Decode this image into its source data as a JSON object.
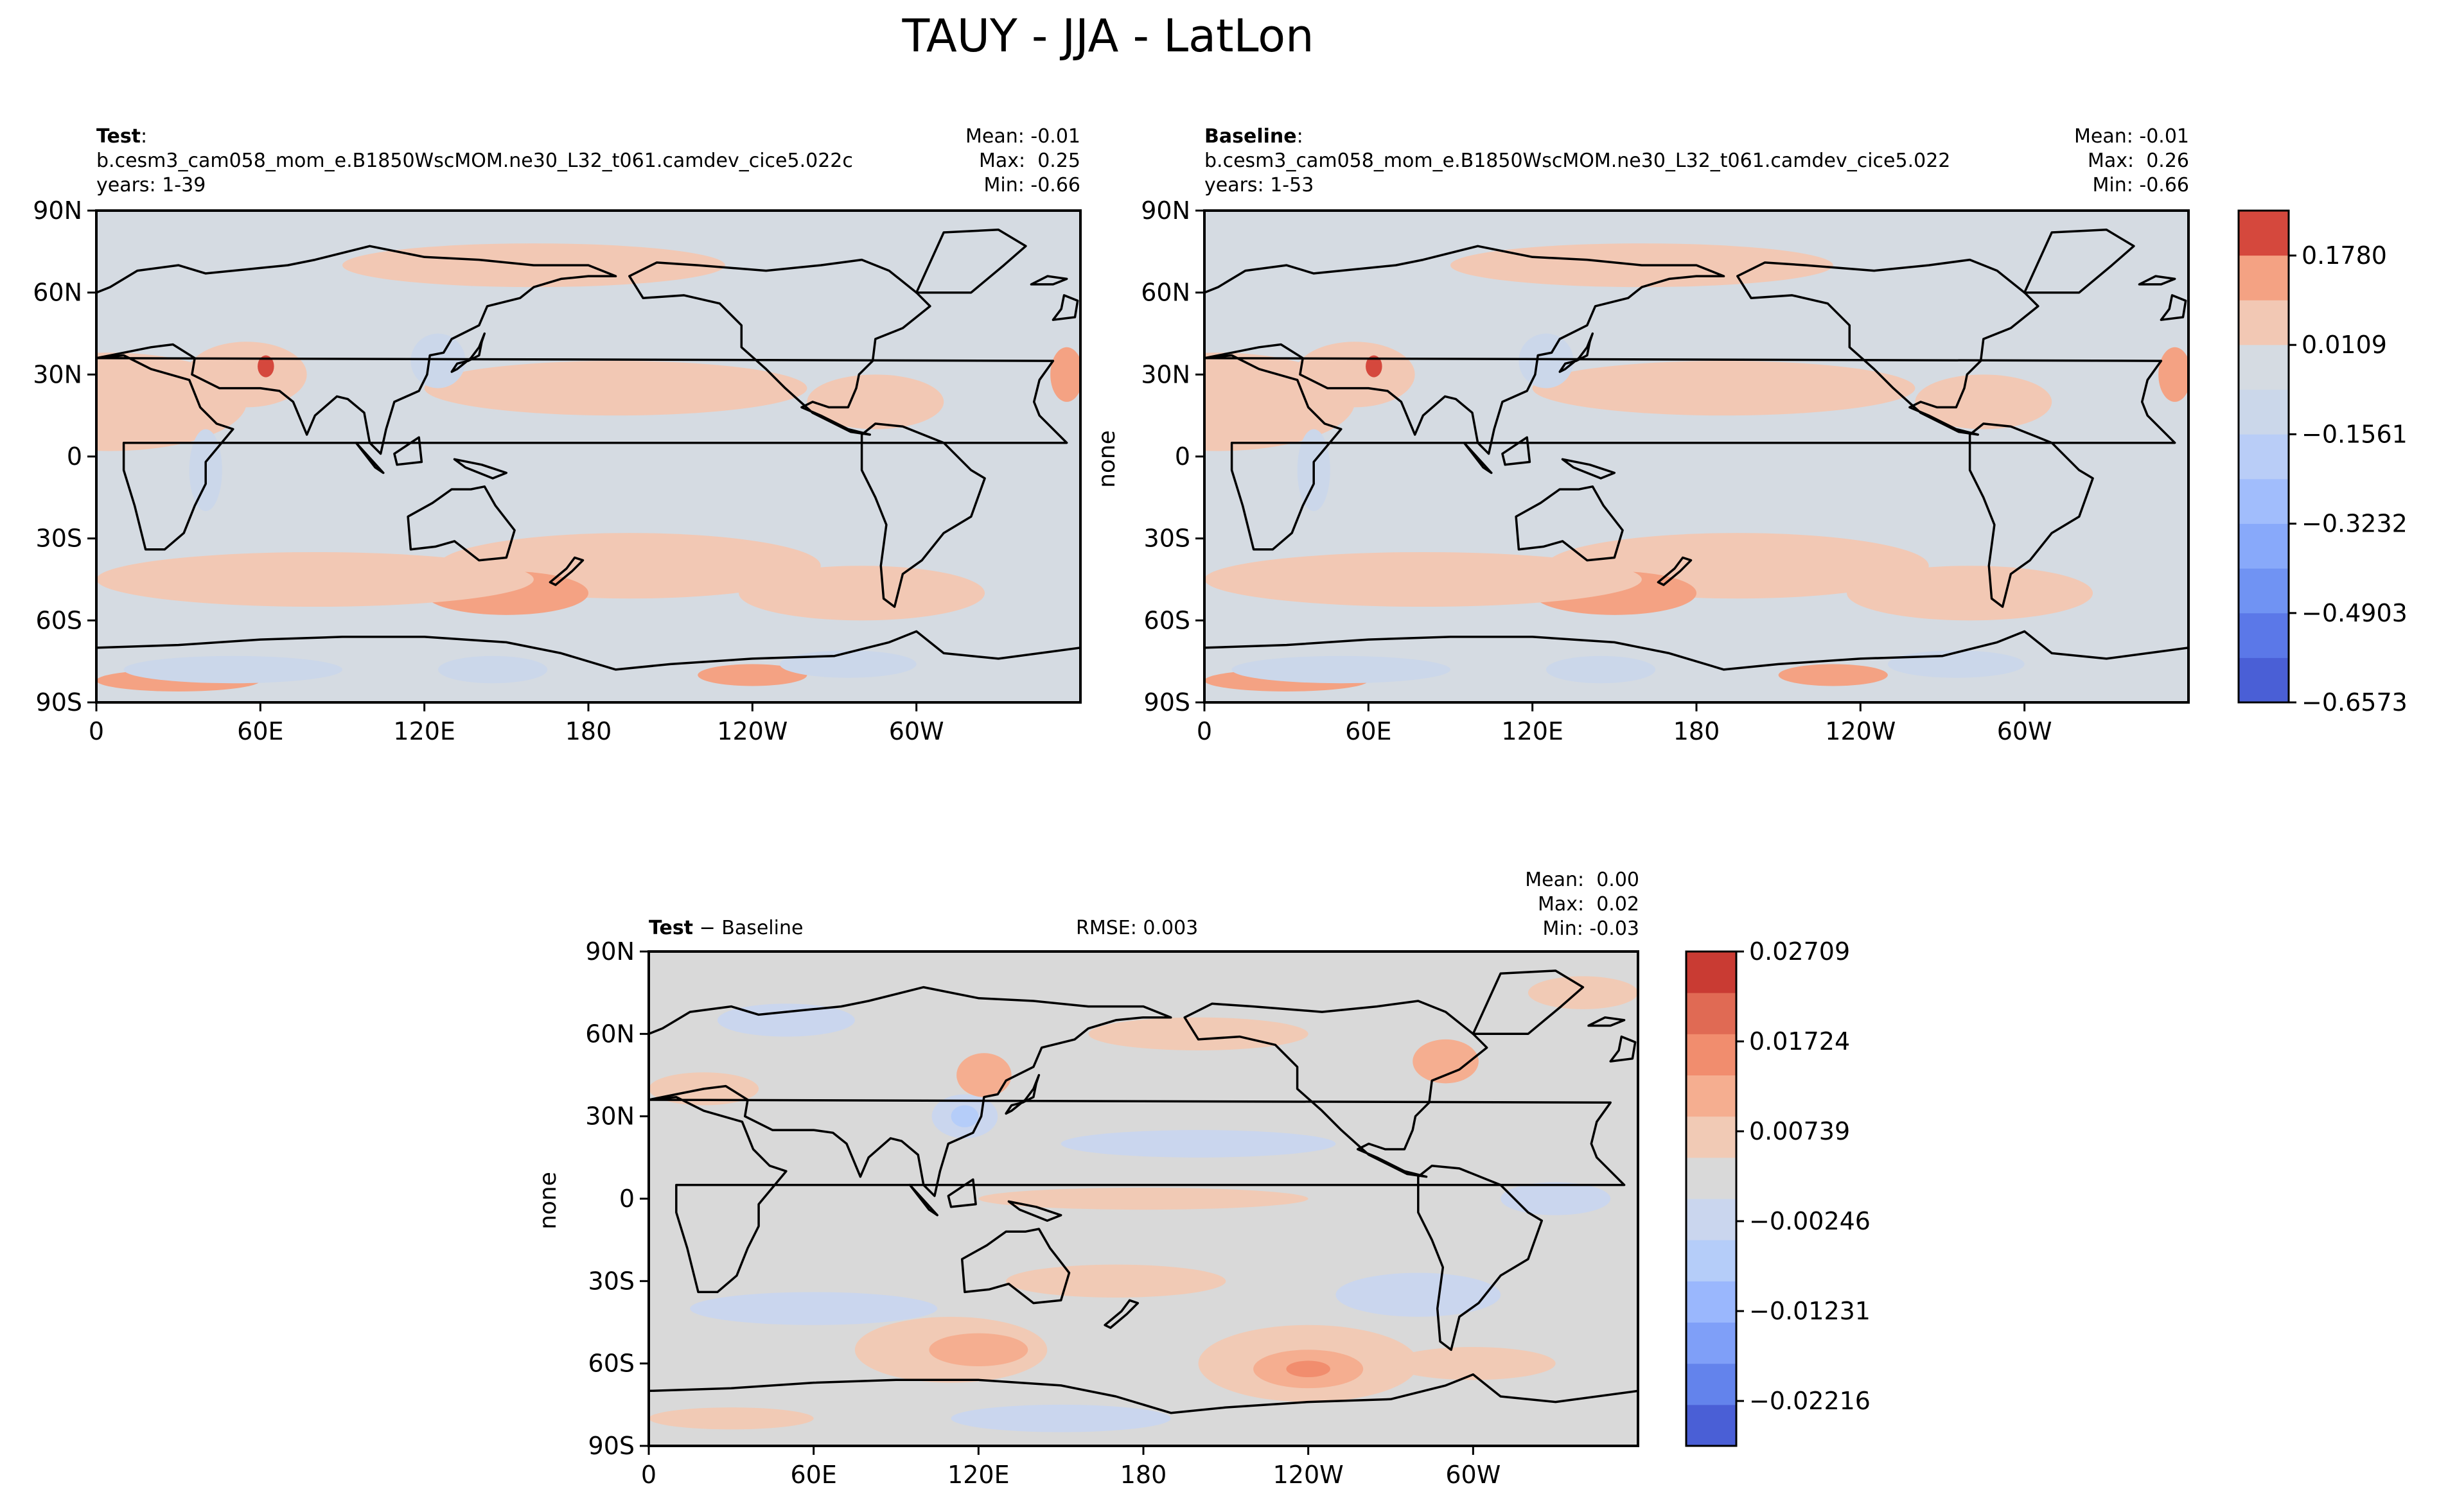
{
  "figure": {
    "title": "TAUY - JJA - LatLon"
  },
  "colors": {
    "background": "#ffffff",
    "land_outline": "#000000",
    "neutral": "#d9d9d9"
  },
  "chart_data": [
    {
      "type": "contour-map",
      "id": "test",
      "label_bold": "Test",
      "label_rest": ":",
      "case": "b.cesm3_cam058_mom_e.B1850WscMOM.ne30_L32_t061.camdev_cice5.022c",
      "years": "years: 1-39",
      "stats": [
        "Mean: -0.01",
        "Max:  0.25",
        "Min: -0.66"
      ],
      "ylabel": "",
      "lat_ticks": [
        "90N",
        "60N",
        "30N",
        "0",
        "30S",
        "60S",
        "90S"
      ],
      "lon_ticks": [
        "0",
        "60E",
        "120E",
        "180",
        "120W",
        "60W"
      ],
      "background_color": "#d5dbe2",
      "blobs": [
        {
          "lon": 5,
          "lat": 20,
          "rx": 50,
          "ry": 18,
          "level": 1
        },
        {
          "lon": 55,
          "lat": 30,
          "rx": 22,
          "ry": 12,
          "level": 1
        },
        {
          "lon": 62,
          "lat": 33,
          "rx": 3,
          "ry": 4,
          "level": 3
        },
        {
          "lon": 190,
          "lat": 25,
          "rx": 70,
          "ry": 10,
          "level": 1
        },
        {
          "lon": 160,
          "lat": 70,
          "rx": 70,
          "ry": 8,
          "level": 1
        },
        {
          "lon": 285,
          "lat": 20,
          "rx": 25,
          "ry": 10,
          "level": 1
        },
        {
          "lon": 195,
          "lat": -40,
          "rx": 70,
          "ry": 12,
          "level": 1
        },
        {
          "lon": 150,
          "lat": -50,
          "rx": 30,
          "ry": 8,
          "level": 2
        },
        {
          "lon": 80,
          "lat": -45,
          "rx": 80,
          "ry": 10,
          "level": 1
        },
        {
          "lon": 280,
          "lat": -50,
          "rx": 45,
          "ry": 10,
          "level": 1
        },
        {
          "lon": 30,
          "lat": -82,
          "rx": 30,
          "ry": 4,
          "level": 2
        },
        {
          "lon": 240,
          "lat": -80,
          "rx": 20,
          "ry": 4,
          "level": 2
        },
        {
          "lon": 145,
          "lat": -78,
          "rx": 20,
          "ry": 5,
          "level": -1
        },
        {
          "lon": 50,
          "lat": -78,
          "rx": 40,
          "ry": 5,
          "level": -1
        },
        {
          "lon": 275,
          "lat": -76,
          "rx": 25,
          "ry": 5,
          "level": -1
        },
        {
          "lon": 40,
          "lat": -5,
          "rx": 6,
          "ry": 15,
          "level": -1
        },
        {
          "lon": 125,
          "lat": 35,
          "rx": 10,
          "ry": 10,
          "level": -1
        },
        {
          "lon": 355,
          "lat": 30,
          "rx": 6,
          "ry": 10,
          "level": 2
        }
      ]
    },
    {
      "type": "contour-map",
      "id": "baseline",
      "label_bold": "Baseline",
      "label_rest": ":",
      "case": "b.cesm3_cam058_mom_e.B1850WscMOM.ne30_L32_t061.camdev_cice5.022",
      "years": "years: 1-53",
      "stats": [
        "Mean: -0.01",
        "Max:  0.26",
        "Min: -0.66"
      ],
      "ylabel": "none",
      "lat_ticks": [
        "90N",
        "60N",
        "30N",
        "0",
        "30S",
        "60S",
        "90S"
      ],
      "lon_ticks": [
        "0",
        "60E",
        "120E",
        "180",
        "120W",
        "60W"
      ],
      "background_color": "#d5dbe2",
      "blobs": [
        {
          "lon": 5,
          "lat": 20,
          "rx": 50,
          "ry": 18,
          "level": 1
        },
        {
          "lon": 55,
          "lat": 30,
          "rx": 22,
          "ry": 12,
          "level": 1
        },
        {
          "lon": 62,
          "lat": 33,
          "rx": 3,
          "ry": 4,
          "level": 3
        },
        {
          "lon": 190,
          "lat": 25,
          "rx": 70,
          "ry": 10,
          "level": 1
        },
        {
          "lon": 160,
          "lat": 70,
          "rx": 70,
          "ry": 8,
          "level": 1
        },
        {
          "lon": 285,
          "lat": 20,
          "rx": 25,
          "ry": 10,
          "level": 1
        },
        {
          "lon": 195,
          "lat": -40,
          "rx": 70,
          "ry": 12,
          "level": 1
        },
        {
          "lon": 150,
          "lat": -50,
          "rx": 30,
          "ry": 8,
          "level": 2
        },
        {
          "lon": 80,
          "lat": -45,
          "rx": 80,
          "ry": 10,
          "level": 1
        },
        {
          "lon": 280,
          "lat": -50,
          "rx": 45,
          "ry": 10,
          "level": 1
        },
        {
          "lon": 30,
          "lat": -82,
          "rx": 30,
          "ry": 4,
          "level": 2
        },
        {
          "lon": 230,
          "lat": -80,
          "rx": 20,
          "ry": 4,
          "level": 2
        },
        {
          "lon": 145,
          "lat": -78,
          "rx": 20,
          "ry": 5,
          "level": -1
        },
        {
          "lon": 50,
          "lat": -78,
          "rx": 40,
          "ry": 5,
          "level": -1
        },
        {
          "lon": 275,
          "lat": -76,
          "rx": 25,
          "ry": 5,
          "level": -1
        },
        {
          "lon": 40,
          "lat": -5,
          "rx": 6,
          "ry": 15,
          "level": -1
        },
        {
          "lon": 125,
          "lat": 35,
          "rx": 10,
          "ry": 10,
          "level": -1
        },
        {
          "lon": 355,
          "lat": 30,
          "rx": 6,
          "ry": 10,
          "level": 2
        }
      ]
    },
    {
      "type": "contour-map",
      "id": "diff",
      "label_bold": "Test",
      "label_rest": " − Baseline",
      "rmse": "RMSE: 0.003",
      "stats": [
        "Mean:  0.00",
        "Max:  0.02",
        "Min: -0.03"
      ],
      "ylabel": "none",
      "lat_ticks": [
        "90N",
        "60N",
        "30N",
        "0",
        "30S",
        "60S",
        "90S"
      ],
      "lon_ticks": [
        "0",
        "60E",
        "120E",
        "180",
        "120W",
        "60W"
      ],
      "background_color": "#d9d9d9",
      "blobs": [
        {
          "lon": 110,
          "lat": -55,
          "rx": 35,
          "ry": 12,
          "level": 1
        },
        {
          "lon": 120,
          "lat": -55,
          "rx": 18,
          "ry": 6,
          "level": 2
        },
        {
          "lon": 240,
          "lat": -60,
          "rx": 40,
          "ry": 14,
          "level": 1
        },
        {
          "lon": 240,
          "lat": -62,
          "rx": 20,
          "ry": 7,
          "level": 2
        },
        {
          "lon": 240,
          "lat": -62,
          "rx": 8,
          "ry": 3,
          "level": 3
        },
        {
          "lon": 50,
          "lat": 65,
          "rx": 25,
          "ry": 6,
          "level": -1
        },
        {
          "lon": 115,
          "lat": 30,
          "rx": 12,
          "ry": 8,
          "level": -1
        },
        {
          "lon": 115,
          "lat": 30,
          "rx": 5,
          "ry": 4,
          "level": -2
        },
        {
          "lon": 122,
          "lat": 45,
          "rx": 10,
          "ry": 8,
          "level": 2
        },
        {
          "lon": 290,
          "lat": 50,
          "rx": 12,
          "ry": 8,
          "level": 2
        },
        {
          "lon": 200,
          "lat": 60,
          "rx": 40,
          "ry": 6,
          "level": 1
        },
        {
          "lon": 150,
          "lat": -80,
          "rx": 40,
          "ry": 5,
          "level": -1
        },
        {
          "lon": 30,
          "lat": -80,
          "rx": 30,
          "ry": 4,
          "level": 1
        },
        {
          "lon": 280,
          "lat": -35,
          "rx": 30,
          "ry": 8,
          "level": -1
        },
        {
          "lon": 170,
          "lat": -30,
          "rx": 40,
          "ry": 6,
          "level": 1
        },
        {
          "lon": 60,
          "lat": -40,
          "rx": 45,
          "ry": 6,
          "level": -1
        },
        {
          "lon": 180,
          "lat": 0,
          "rx": 60,
          "ry": 4,
          "level": 1
        },
        {
          "lon": 330,
          "lat": 0,
          "rx": 20,
          "ry": 6,
          "level": -1
        },
        {
          "lon": 20,
          "lat": 40,
          "rx": 20,
          "ry": 6,
          "level": 1
        },
        {
          "lon": 200,
          "lat": 20,
          "rx": 50,
          "ry": 5,
          "level": -1
        },
        {
          "lon": 300,
          "lat": -60,
          "rx": 30,
          "ry": 6,
          "level": 1
        },
        {
          "lon": 340,
          "lat": 75,
          "rx": 20,
          "ry": 6,
          "level": 1
        }
      ]
    }
  ],
  "colorbars": [
    {
      "id": "main",
      "labels": [
        "0.1780",
        "0.0109",
        "−0.1561",
        "−0.3232",
        "−0.4903",
        "−0.6573"
      ],
      "label_values": [
        0.178,
        0.0109,
        -0.1561,
        -0.3232,
        -0.4903,
        -0.6573
      ],
      "range": [
        -0.6573,
        0.262
      ],
      "colors": [
        "#4a5fd6",
        "#5b78e8",
        "#7093f3",
        "#88a9fa",
        "#a1bdfc",
        "#b9cdf7",
        "#cbd7ea",
        "#d5dbe2",
        "#f2c8b4",
        "#f4a283",
        "#d5483d"
      ]
    },
    {
      "id": "diff",
      "labels": [
        "0.02709",
        "0.01724",
        "0.00739",
        "−0.00246",
        "−0.01231",
        "−0.02216"
      ],
      "label_values": [
        0.02709,
        0.01724,
        0.00739,
        -0.00246,
        -0.01231,
        -0.02216
      ],
      "range": [
        -0.02708,
        0.02709
      ],
      "colors": [
        "#4a5fd6",
        "#6383ec",
        "#7f9ff8",
        "#9ab7fd",
        "#b5cdf9",
        "#cad6ee",
        "#d9d9d9",
        "#f1cab5",
        "#f5ae90",
        "#f18d6e",
        "#e06a54",
        "#c93b33"
      ]
    }
  ]
}
